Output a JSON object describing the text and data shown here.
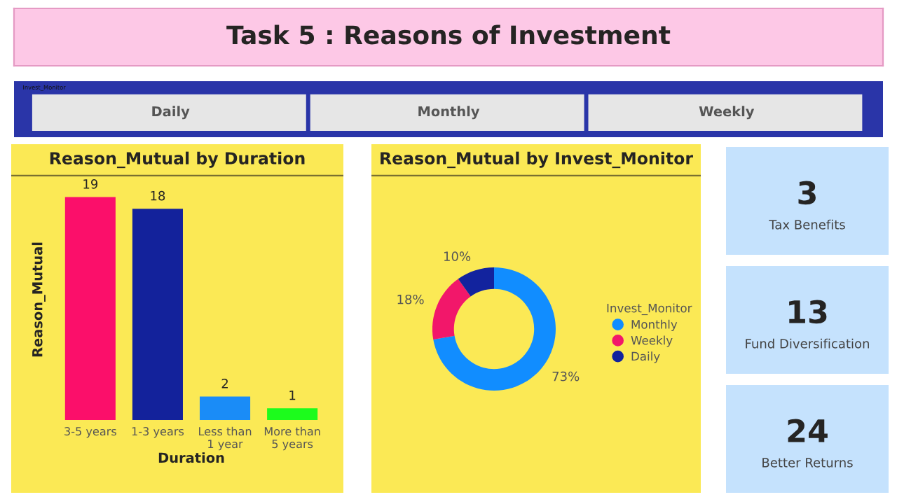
{
  "chart_data": [
    {
      "type": "other",
      "title": "Task 5 : Reasons of Investment"
    },
    {
      "type": "other",
      "title": "Invest_Monitor",
      "annotations": [
        "Daily",
        "Monthly",
        "Weekly"
      ]
    },
    {
      "type": "bar",
      "title": "Reason_Mutual by Duration",
      "xlabel": "Duration",
      "ylabel": "Reason_Mutual",
      "categories": [
        "3-5 years",
        "1-3 years",
        "Less than 1 year",
        "More than 5 years"
      ],
      "values": [
        19,
        18,
        2,
        1
      ],
      "colors": [
        "#fb0f6a",
        "#13229b",
        "#1a8cf7",
        "#1cfc1c"
      ],
      "data_labels": true,
      "tick_labels": "x",
      "grid": false,
      "legend": false
    },
    {
      "type": "donut",
      "title": "Reason_Mutual by Invest_Monitor",
      "legend_title": "Invest_Monitor",
      "categories": [
        "Monthly",
        "Weekly",
        "Daily"
      ],
      "values": [
        73,
        18,
        10
      ],
      "value_labels": [
        "73%",
        "18%",
        "10%"
      ],
      "colors": [
        "#118dff",
        "#f2176a",
        "#12239e"
      ],
      "legend": "right"
    },
    {
      "type": "other",
      "annotations": [
        "3",
        "Tax Benefits",
        "13",
        "Fund Diversification",
        "24",
        "Better Returns"
      ]
    }
  ]
}
